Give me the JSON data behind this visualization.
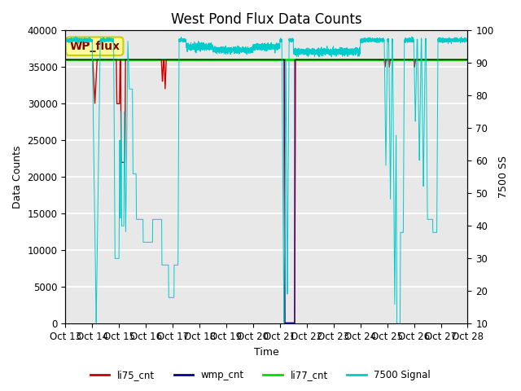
{
  "title": "West Pond Flux Data Counts",
  "xlabel": "Time",
  "ylabel_left": "Data Counts",
  "ylabel_right": "7500 SS",
  "ylim_left": [
    0,
    40000
  ],
  "ylim_right": [
    10,
    100
  ],
  "x_tick_labels": [
    "Oct 13",
    "Oct 14",
    "Oct 15",
    "Oct 16",
    "Oct 17",
    "Oct 18",
    "Oct 19",
    "Oct 20",
    "Oct 21",
    "Oct 22",
    "Oct 23",
    "Oct 24",
    "Oct 25",
    "Oct 26",
    "Oct 27",
    "Oct 28"
  ],
  "li77_cnt_value": 36000,
  "li77_color": "#00dd00",
  "li75_color": "#cc0000",
  "wmp_color": "#000099",
  "signal_color": "#00cccc",
  "background_color": "#e8e8e8",
  "title_fontsize": 12,
  "legend_labels": [
    "li75_cnt",
    "wmp_cnt",
    "li77_cnt",
    "7500 Signal"
  ],
  "annotation_text": "WP_flux",
  "annotation_bg": "#ffff99",
  "annotation_border": "#cccc00"
}
